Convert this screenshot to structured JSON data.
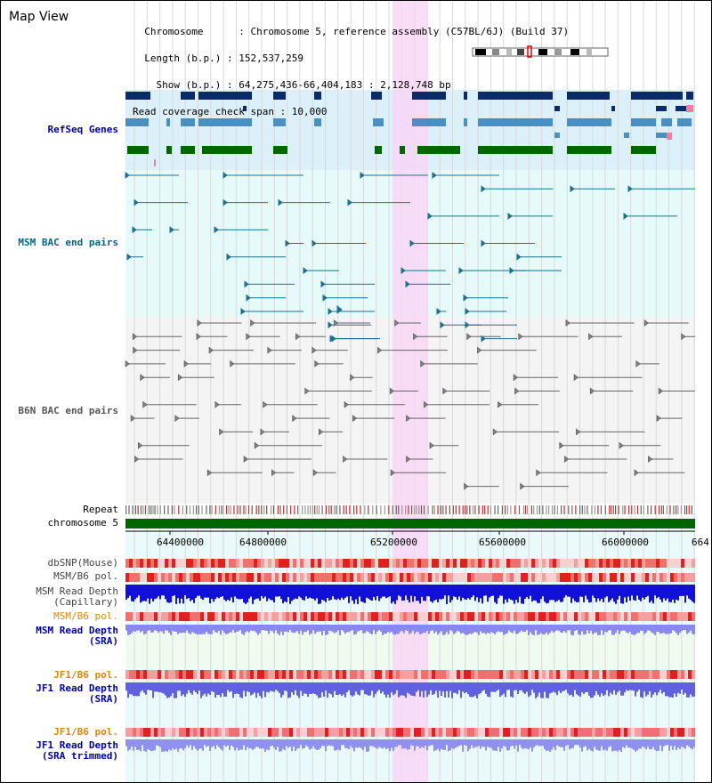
{
  "title": "Map View",
  "info": {
    "lines": [
      "  Chromosome      : Chromosome 5, reference assembly (C57BL/6J) (Build 37)",
      "  Length (b.p.) : 152,537,259",
      "    Show (b.p.) : 64,275,436-66,404,183 : 2,128,748 bp",
      "Read coverage check span : 10,000"
    ]
  },
  "tracks": {
    "refseq": "RefSeq Genes",
    "msm_bac": "MSM BAC end pairs",
    "b6n_bac": "B6N BAC end pairs",
    "repeat": "Repeat",
    "chromosome": "chromosome 5",
    "dbsnp": "dbSNP(Mouse)",
    "msm_b6_pol": "MSM/B6 pol.",
    "msm_depth_cap": "MSM Read Depth\n(Capillary)",
    "msm_b6_pol2": "MSM/B6 pol.",
    "msm_depth_sra": "MSM Read Depth\n(SRA)",
    "jf1_b6_pol": "JF1/B6 pol.",
    "jf1_depth_sra": "JF1 Read Depth\n(SRA)",
    "jf1_b6_pol2": "JF1/B6 pol.",
    "jf1_depth_trim": "JF1 Read Depth\n(SRA trimmed)"
  },
  "axis": {
    "ticks": [
      "64400000",
      "64800000",
      "65200000",
      "65600000",
      "66000000",
      "664"
    ]
  },
  "colors": {
    "refseq_label": "#0000aa",
    "msm_label": "#006688",
    "b6n_label": "#555555",
    "orange_label": "#dd8800",
    "blue_label": "#0000aa",
    "highlight": "#f8d6f4",
    "gene_dark": "#0a2a6a",
    "gene_mid": "#4a8fbf",
    "gene_green": "#006600",
    "chrom_green": "#006600"
  }
}
